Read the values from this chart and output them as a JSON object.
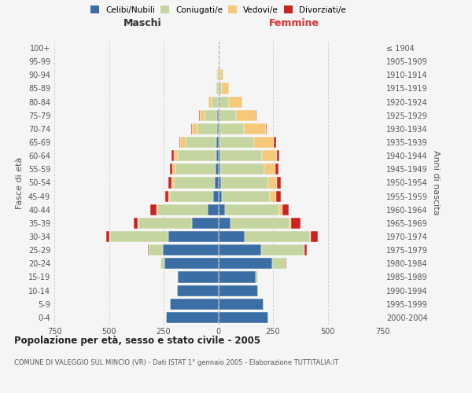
{
  "age_groups": [
    "0-4",
    "5-9",
    "10-14",
    "15-19",
    "20-24",
    "25-29",
    "30-34",
    "35-39",
    "40-44",
    "45-49",
    "50-54",
    "55-59",
    "60-64",
    "65-69",
    "70-74",
    "75-79",
    "80-84",
    "85-89",
    "90-94",
    "95-99",
    "100+"
  ],
  "birth_years": [
    "2000-2004",
    "1995-1999",
    "1990-1994",
    "1985-1989",
    "1980-1984",
    "1975-1979",
    "1970-1974",
    "1965-1969",
    "1960-1964",
    "1955-1959",
    "1950-1954",
    "1945-1949",
    "1940-1944",
    "1935-1939",
    "1930-1934",
    "1925-1929",
    "1920-1924",
    "1915-1919",
    "1910-1914",
    "1905-1909",
    "≤ 1904"
  ],
  "colors": {
    "celibi": "#3a6ea5",
    "coniugati": "#c5d5a0",
    "vedovi": "#f5c87a",
    "divorziati": "#cc2222"
  },
  "males": {
    "celibi": [
      240,
      220,
      190,
      185,
      245,
      255,
      230,
      120,
      50,
      22,
      15,
      12,
      10,
      8,
      5,
      4,
      2,
      0,
      0,
      0,
      0
    ],
    "coniugati": [
      0,
      0,
      0,
      5,
      18,
      62,
      265,
      245,
      230,
      200,
      190,
      185,
      175,
      140,
      90,
      60,
      30,
      8,
      5,
      0,
      0
    ],
    "vedovi": [
      0,
      0,
      0,
      0,
      0,
      0,
      2,
      2,
      3,
      5,
      10,
      15,
      20,
      25,
      25,
      22,
      12,
      6,
      3,
      0,
      0
    ],
    "divorziati": [
      0,
      0,
      0,
      0,
      0,
      5,
      15,
      20,
      28,
      15,
      12,
      10,
      8,
      5,
      5,
      2,
      0,
      0,
      0,
      0,
      0
    ]
  },
  "females": {
    "celibi": [
      230,
      208,
      182,
      172,
      245,
      195,
      120,
      55,
      30,
      15,
      12,
      10,
      8,
      5,
      3,
      2,
      2,
      0,
      0,
      0,
      0
    ],
    "coniugati": [
      0,
      0,
      0,
      10,
      62,
      198,
      298,
      270,
      248,
      220,
      215,
      200,
      190,
      160,
      115,
      80,
      45,
      15,
      8,
      2,
      0
    ],
    "vedovi": [
      0,
      0,
      0,
      0,
      0,
      2,
      5,
      8,
      15,
      30,
      40,
      50,
      70,
      90,
      100,
      90,
      62,
      32,
      16,
      4,
      2
    ],
    "divorziati": [
      0,
      0,
      0,
      0,
      5,
      10,
      32,
      42,
      30,
      20,
      18,
      15,
      12,
      8,
      5,
      2,
      0,
      0,
      0,
      0,
      0
    ]
  },
  "title": "Popolazione per età, sesso e stato civile - 2005",
  "subtitle": "COMUNE DI VALEGGIO SUL MINCIO (VR) - Dati ISTAT 1° gennaio 2005 - Elaborazione TUTTITALIA.IT",
  "xlabel_left": "Maschi",
  "xlabel_right": "Femmine",
  "ylabel_left": "Fasce di età",
  "ylabel_right": "Anni di nascita",
  "xlim": 750,
  "bg_color": "#f5f5f5",
  "grid_color": "#cccccc"
}
